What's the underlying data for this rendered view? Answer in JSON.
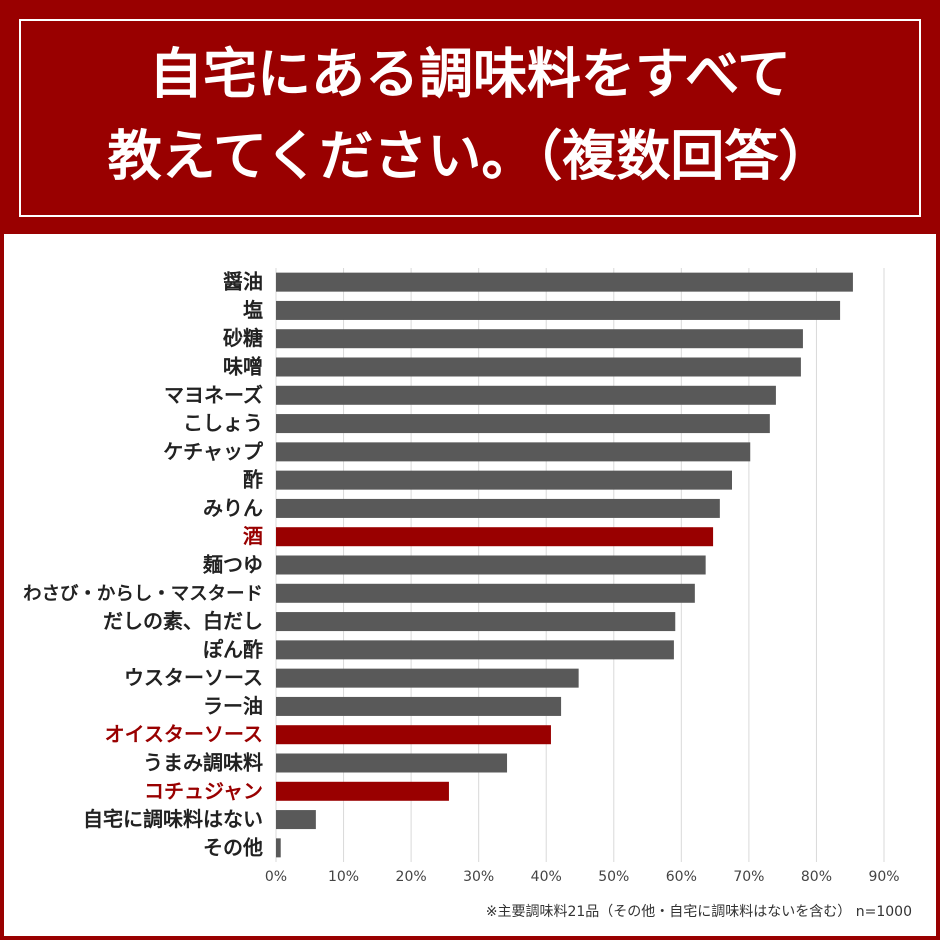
{
  "chart_data": {
    "type": "bar",
    "orientation": "horizontal",
    "title": [
      "自宅にある調味料をすべて",
      "教えてください。（複数回答）"
    ],
    "categories": [
      "醤油",
      "塩",
      "砂糖",
      "味噌",
      "マヨネーズ",
      "こしょう",
      "ケチャップ",
      "酢",
      "みりん",
      "酒",
      "麺つゆ",
      "わさび・からし・マスタード",
      "だしの素、白だし",
      "ぽん酢",
      "ウスターソース",
      "ラー油",
      "オイスターソース",
      "うまみ調味料",
      "コチュジャン",
      "自宅に調味料はない",
      "その他"
    ],
    "values": [
      85.4,
      83.5,
      78.0,
      77.7,
      74.0,
      73.1,
      70.2,
      67.5,
      65.7,
      64.7,
      63.6,
      62.0,
      59.1,
      58.9,
      44.8,
      42.2,
      40.7,
      34.2,
      25.6,
      5.9,
      0.7
    ],
    "colors": [
      "#595959",
      "#595959",
      "#595959",
      "#595959",
      "#595959",
      "#595959",
      "#595959",
      "#595959",
      "#595959",
      "#990000",
      "#595959",
      "#595959",
      "#595959",
      "#595959",
      "#595959",
      "#595959",
      "#990000",
      "#595959",
      "#990000",
      "#595959",
      "#595959"
    ],
    "xlim": [
      0,
      90
    ],
    "xticks": [
      {
        "value": 0,
        "label": "0%"
      },
      {
        "value": 10,
        "label": "10%"
      },
      {
        "value": 20,
        "label": "20%"
      },
      {
        "value": 30,
        "label": "30%"
      },
      {
        "value": 40,
        "label": "40%"
      },
      {
        "value": 50,
        "label": "50%"
      },
      {
        "value": 60,
        "label": "60%"
      },
      {
        "value": 70,
        "label": "70%"
      },
      {
        "value": 80,
        "label": "80%"
      },
      {
        "value": 90,
        "label": "90%"
      }
    ],
    "grid": true,
    "note": "※主要調味料21品（その他・自宅に調味料はないを含む） n=1000"
  }
}
